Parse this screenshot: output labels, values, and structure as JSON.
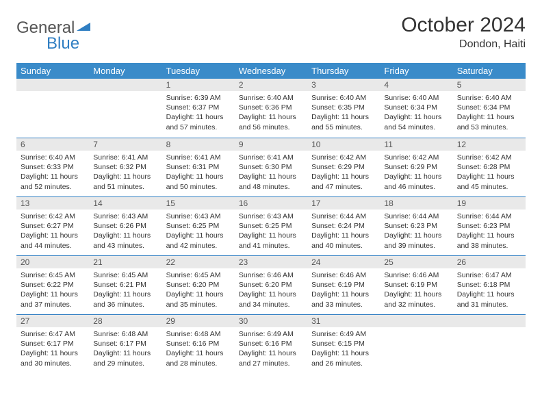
{
  "logo": {
    "part1": "General",
    "part2": "Blue"
  },
  "header": {
    "title": "October 2024",
    "location": "Dondon, Haiti"
  },
  "colors": {
    "header_bg": "#3a8bc9",
    "header_text": "#ffffff",
    "daynum_bg": "#e9e9e9",
    "row_divider": "#2f7ec2",
    "body_text": "#333333",
    "logo_gray": "#555555",
    "logo_blue": "#2f7ec2",
    "page_bg": "#ffffff"
  },
  "typography": {
    "title_fontsize": 30,
    "location_fontsize": 16,
    "weekday_fontsize": 13,
    "daynum_fontsize": 12,
    "cell_fontsize": 10.5
  },
  "weekdays": [
    "Sunday",
    "Monday",
    "Tuesday",
    "Wednesday",
    "Thursday",
    "Friday",
    "Saturday"
  ],
  "weeks": [
    [
      {
        "n": "",
        "sr": "",
        "ss": "",
        "dl": ""
      },
      {
        "n": "",
        "sr": "",
        "ss": "",
        "dl": ""
      },
      {
        "n": "1",
        "sr": "Sunrise: 6:39 AM",
        "ss": "Sunset: 6:37 PM",
        "dl": "Daylight: 11 hours and 57 minutes."
      },
      {
        "n": "2",
        "sr": "Sunrise: 6:40 AM",
        "ss": "Sunset: 6:36 PM",
        "dl": "Daylight: 11 hours and 56 minutes."
      },
      {
        "n": "3",
        "sr": "Sunrise: 6:40 AM",
        "ss": "Sunset: 6:35 PM",
        "dl": "Daylight: 11 hours and 55 minutes."
      },
      {
        "n": "4",
        "sr": "Sunrise: 6:40 AM",
        "ss": "Sunset: 6:34 PM",
        "dl": "Daylight: 11 hours and 54 minutes."
      },
      {
        "n": "5",
        "sr": "Sunrise: 6:40 AM",
        "ss": "Sunset: 6:34 PM",
        "dl": "Daylight: 11 hours and 53 minutes."
      }
    ],
    [
      {
        "n": "6",
        "sr": "Sunrise: 6:40 AM",
        "ss": "Sunset: 6:33 PM",
        "dl": "Daylight: 11 hours and 52 minutes."
      },
      {
        "n": "7",
        "sr": "Sunrise: 6:41 AM",
        "ss": "Sunset: 6:32 PM",
        "dl": "Daylight: 11 hours and 51 minutes."
      },
      {
        "n": "8",
        "sr": "Sunrise: 6:41 AM",
        "ss": "Sunset: 6:31 PM",
        "dl": "Daylight: 11 hours and 50 minutes."
      },
      {
        "n": "9",
        "sr": "Sunrise: 6:41 AM",
        "ss": "Sunset: 6:30 PM",
        "dl": "Daylight: 11 hours and 48 minutes."
      },
      {
        "n": "10",
        "sr": "Sunrise: 6:42 AM",
        "ss": "Sunset: 6:29 PM",
        "dl": "Daylight: 11 hours and 47 minutes."
      },
      {
        "n": "11",
        "sr": "Sunrise: 6:42 AM",
        "ss": "Sunset: 6:29 PM",
        "dl": "Daylight: 11 hours and 46 minutes."
      },
      {
        "n": "12",
        "sr": "Sunrise: 6:42 AM",
        "ss": "Sunset: 6:28 PM",
        "dl": "Daylight: 11 hours and 45 minutes."
      }
    ],
    [
      {
        "n": "13",
        "sr": "Sunrise: 6:42 AM",
        "ss": "Sunset: 6:27 PM",
        "dl": "Daylight: 11 hours and 44 minutes."
      },
      {
        "n": "14",
        "sr": "Sunrise: 6:43 AM",
        "ss": "Sunset: 6:26 PM",
        "dl": "Daylight: 11 hours and 43 minutes."
      },
      {
        "n": "15",
        "sr": "Sunrise: 6:43 AM",
        "ss": "Sunset: 6:25 PM",
        "dl": "Daylight: 11 hours and 42 minutes."
      },
      {
        "n": "16",
        "sr": "Sunrise: 6:43 AM",
        "ss": "Sunset: 6:25 PM",
        "dl": "Daylight: 11 hours and 41 minutes."
      },
      {
        "n": "17",
        "sr": "Sunrise: 6:44 AM",
        "ss": "Sunset: 6:24 PM",
        "dl": "Daylight: 11 hours and 40 minutes."
      },
      {
        "n": "18",
        "sr": "Sunrise: 6:44 AM",
        "ss": "Sunset: 6:23 PM",
        "dl": "Daylight: 11 hours and 39 minutes."
      },
      {
        "n": "19",
        "sr": "Sunrise: 6:44 AM",
        "ss": "Sunset: 6:23 PM",
        "dl": "Daylight: 11 hours and 38 minutes."
      }
    ],
    [
      {
        "n": "20",
        "sr": "Sunrise: 6:45 AM",
        "ss": "Sunset: 6:22 PM",
        "dl": "Daylight: 11 hours and 37 minutes."
      },
      {
        "n": "21",
        "sr": "Sunrise: 6:45 AM",
        "ss": "Sunset: 6:21 PM",
        "dl": "Daylight: 11 hours and 36 minutes."
      },
      {
        "n": "22",
        "sr": "Sunrise: 6:45 AM",
        "ss": "Sunset: 6:20 PM",
        "dl": "Daylight: 11 hours and 35 minutes."
      },
      {
        "n": "23",
        "sr": "Sunrise: 6:46 AM",
        "ss": "Sunset: 6:20 PM",
        "dl": "Daylight: 11 hours and 34 minutes."
      },
      {
        "n": "24",
        "sr": "Sunrise: 6:46 AM",
        "ss": "Sunset: 6:19 PM",
        "dl": "Daylight: 11 hours and 33 minutes."
      },
      {
        "n": "25",
        "sr": "Sunrise: 6:46 AM",
        "ss": "Sunset: 6:19 PM",
        "dl": "Daylight: 11 hours and 32 minutes."
      },
      {
        "n": "26",
        "sr": "Sunrise: 6:47 AM",
        "ss": "Sunset: 6:18 PM",
        "dl": "Daylight: 11 hours and 31 minutes."
      }
    ],
    [
      {
        "n": "27",
        "sr": "Sunrise: 6:47 AM",
        "ss": "Sunset: 6:17 PM",
        "dl": "Daylight: 11 hours and 30 minutes."
      },
      {
        "n": "28",
        "sr": "Sunrise: 6:48 AM",
        "ss": "Sunset: 6:17 PM",
        "dl": "Daylight: 11 hours and 29 minutes."
      },
      {
        "n": "29",
        "sr": "Sunrise: 6:48 AM",
        "ss": "Sunset: 6:16 PM",
        "dl": "Daylight: 11 hours and 28 minutes."
      },
      {
        "n": "30",
        "sr": "Sunrise: 6:49 AM",
        "ss": "Sunset: 6:16 PM",
        "dl": "Daylight: 11 hours and 27 minutes."
      },
      {
        "n": "31",
        "sr": "Sunrise: 6:49 AM",
        "ss": "Sunset: 6:15 PM",
        "dl": "Daylight: 11 hours and 26 minutes."
      },
      {
        "n": "",
        "sr": "",
        "ss": "",
        "dl": ""
      },
      {
        "n": "",
        "sr": "",
        "ss": "",
        "dl": ""
      }
    ]
  ]
}
